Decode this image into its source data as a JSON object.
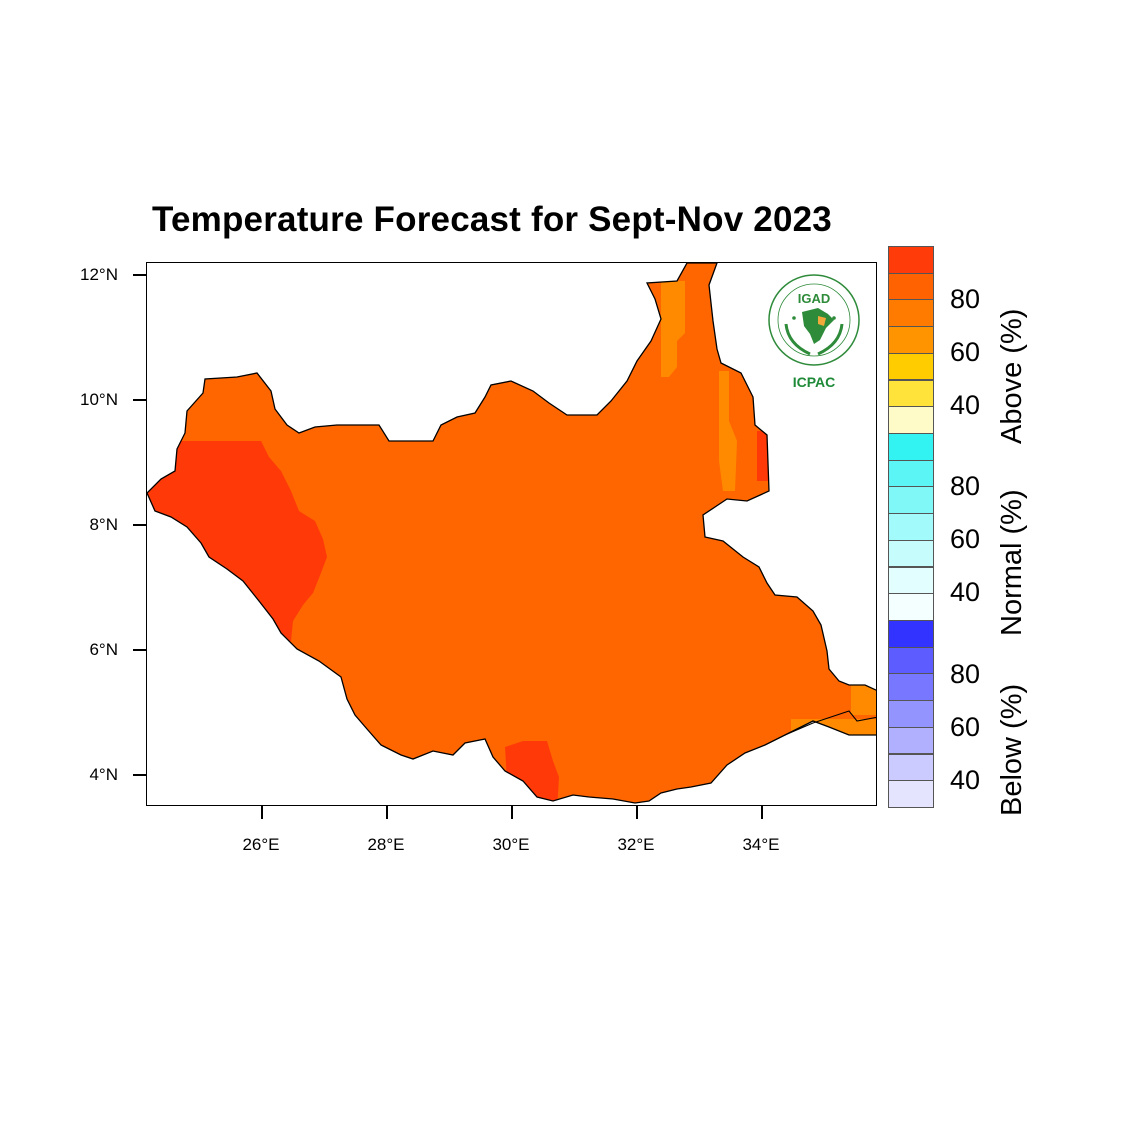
{
  "title": "Temperature Forecast for Sept-Nov 2023",
  "map": {
    "region": "South Sudan",
    "lon_range": [
      24.2,
      35.9
    ],
    "lat_range": [
      3.5,
      12.2
    ],
    "lat_ticks": [
      "12°N",
      "10°N",
      "8°N",
      "6°N",
      "4°N"
    ],
    "lon_ticks": [
      "26°E",
      "28°E",
      "30°E",
      "32°E",
      "34°E"
    ],
    "dominant_category": "Above",
    "colors": {
      "above_60_70": "#ff8a00",
      "above_70_80": "#ff6600",
      "above_80_90": "#ff3d0a"
    }
  },
  "logo": {
    "top": "IGAD",
    "bottom": "ICPAC"
  },
  "legend": {
    "groups": [
      {
        "title": "Above (%)",
        "labels": [
          "80",
          "60",
          "40"
        ],
        "colors": [
          "#ff3b0a",
          "#ff6200",
          "#ff7b00",
          "#ff9400",
          "#ffcc00",
          "#ffe23a",
          "#fffbc8"
        ]
      },
      {
        "title": "Normal (%)",
        "labels": [
          "80",
          "60",
          "40"
        ],
        "colors": [
          "#33f2f2",
          "#5cf5f5",
          "#80f8f8",
          "#a3fafa",
          "#c6fcfc",
          "#e3fefe",
          "#f4ffff"
        ]
      },
      {
        "title": "Below (%)",
        "labels": [
          "80",
          "60",
          "40"
        ],
        "colors": [
          "#3333ff",
          "#5c5cff",
          "#7777ff",
          "#9494ff",
          "#b0b0ff",
          "#cbcbff",
          "#e4e4ff"
        ]
      }
    ]
  }
}
